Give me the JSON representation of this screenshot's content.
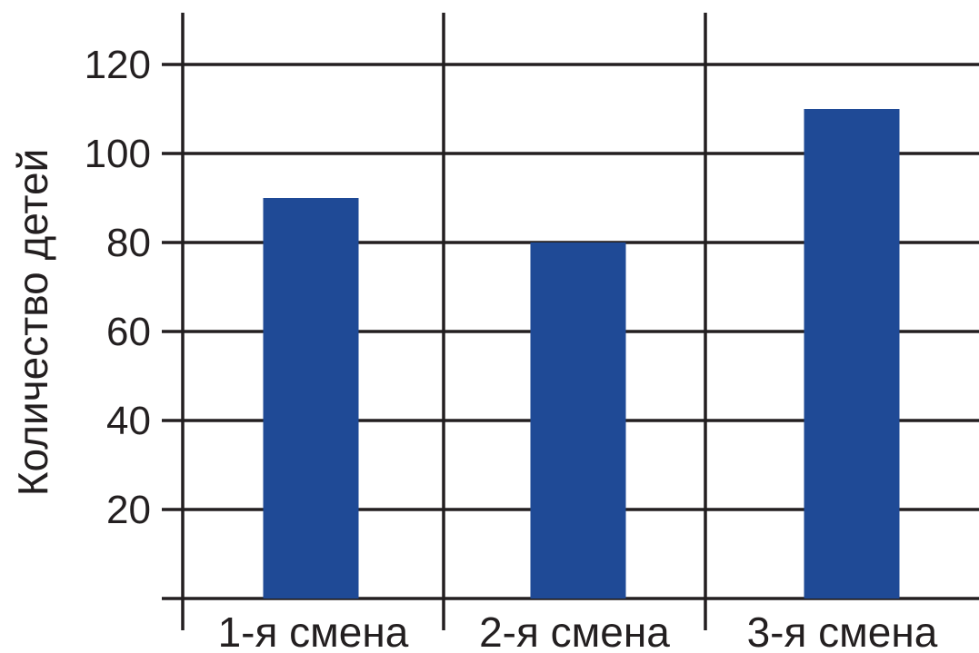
{
  "colors": {
    "bar": "#1f4a96",
    "grid": "#231f20",
    "background": "#ffffff"
  },
  "chart_data": {
    "type": "bar",
    "title": "",
    "xlabel": "",
    "ylabel": "Количество детей",
    "categories": [
      "1-я смена",
      "2-я смена",
      "3-я смена"
    ],
    "values": [
      90,
      80,
      110
    ],
    "ylim": [
      0,
      120
    ],
    "yticks": [
      20,
      40,
      60,
      80,
      100,
      120
    ],
    "ytick_labels": [
      "20",
      "40",
      "60",
      "80",
      "100",
      "120"
    ],
    "grid": true,
    "legend": "none"
  }
}
